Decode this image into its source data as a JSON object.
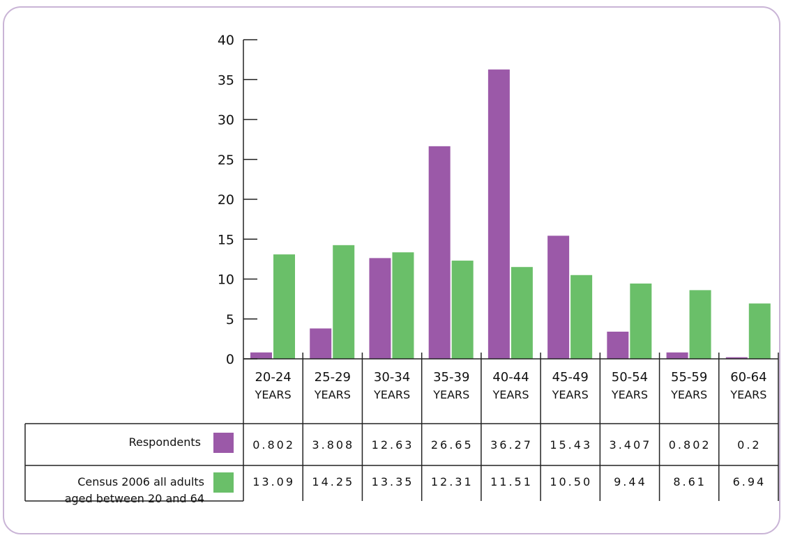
{
  "chart_data": {
    "type": "bar",
    "categories": [
      "20-24 YEARS",
      "25-29 YEARS",
      "30-34 YEARS",
      "35-39 YEARS",
      "40-44 YEARS",
      "45-49 YEARS",
      "50-54 YEARS",
      "55-59 YEARS",
      "60-64 YEARS"
    ],
    "category_lines": [
      [
        "20-24",
        "YEARS"
      ],
      [
        "25-29",
        "YEARS"
      ],
      [
        "30-34",
        "YEARS"
      ],
      [
        "35-39",
        "YEARS"
      ],
      [
        "40-44",
        "YEARS"
      ],
      [
        "45-49",
        "YEARS"
      ],
      [
        "50-54",
        "YEARS"
      ],
      [
        "55-59",
        "YEARS"
      ],
      [
        "60-64",
        "YEARS"
      ]
    ],
    "series": [
      {
        "name": "Respondents",
        "color": "#9b59a8",
        "values": [
          0.802,
          3.808,
          12.63,
          26.65,
          36.27,
          15.43,
          3.407,
          0.802,
          0.2
        ],
        "labels": [
          "0.802",
          "3.808",
          "12.63",
          "26.65",
          "36.27",
          "15.43",
          "3.407",
          "0.802",
          "0.2"
        ]
      },
      {
        "name": "Census 2006 all adults aged between 20 and 64",
        "name_lines": [
          "Census 2006 all adults",
          "aged between 20 and 64"
        ],
        "color": "#6abf69",
        "values": [
          13.09,
          14.25,
          13.35,
          12.31,
          11.51,
          10.5,
          9.44,
          8.61,
          6.94
        ],
        "labels": [
          "13.09",
          "14.25",
          "13.35",
          "12.31",
          "11.51",
          "10.50",
          "9.44",
          "8.61",
          "6.94"
        ]
      }
    ],
    "yticks": [
      0,
      5,
      10,
      15,
      20,
      25,
      30,
      35,
      40
    ],
    "ylim": [
      0,
      40
    ],
    "title": "",
    "xlabel": "",
    "ylabel": "",
    "grid": false,
    "legend": "data table below chart"
  }
}
